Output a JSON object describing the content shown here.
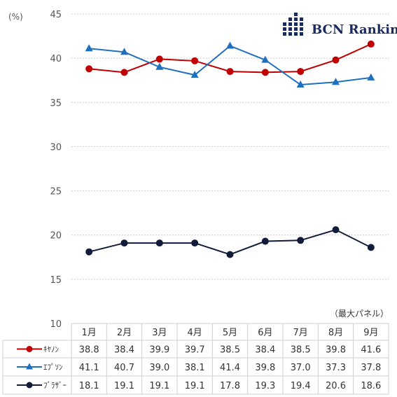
{
  "chart_data": {
    "type": "line",
    "unit_label": "(%)",
    "ylim": [
      10,
      45
    ],
    "yticks": [
      10,
      15,
      20,
      25,
      30,
      35,
      40,
      45
    ],
    "grid": true,
    "categories": [
      "1月",
      "2月",
      "3月",
      "4月",
      "5月",
      "6月",
      "7月",
      "8月",
      "9月"
    ],
    "table_note": "（最大パネル）",
    "series": [
      {
        "name": "ｷﾔﾉﾝ",
        "color": "#c00000",
        "marker": "circle",
        "values": [
          38.8,
          38.4,
          39.9,
          39.7,
          38.5,
          38.4,
          38.5,
          39.8,
          41.6
        ]
      },
      {
        "name": "ｴﾌﾟｿﾝ",
        "color": "#1f6fbf",
        "marker": "triangle",
        "values": [
          41.1,
          40.7,
          39.0,
          38.1,
          41.4,
          39.8,
          37.0,
          37.3,
          37.8
        ]
      },
      {
        "name": "ﾌﾞﾗｻﾞｰ",
        "color": "#111b3a",
        "marker": "circle",
        "values": [
          18.1,
          19.1,
          19.1,
          19.1,
          17.8,
          19.3,
          19.4,
          20.6,
          18.6
        ]
      }
    ]
  },
  "logo": {
    "text": "BCN Ranking",
    "color": "#1b2a5c"
  }
}
